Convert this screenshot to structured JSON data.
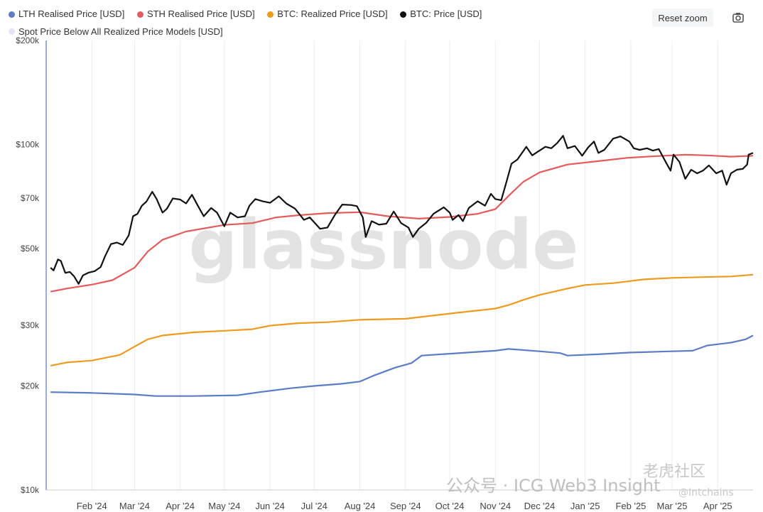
{
  "legend": {
    "items": [
      {
        "label": "LTH Realised Price [USD]",
        "color": "#5b7cc7"
      },
      {
        "label": "STH Realised Price [USD]",
        "color": "#e55a5a"
      },
      {
        "label": "BTC: Realized Price [USD]",
        "color": "#ef9a1d"
      },
      {
        "label": "BTC: Price [USD]",
        "color": "#111111"
      },
      {
        "label": "Spot Price Below All Realized Price Models [USD]",
        "color": "#e4e4f2"
      }
    ]
  },
  "toolbar": {
    "reset_zoom_label": "Reset zoom",
    "camera_icon": "camera-icon"
  },
  "watermarks": {
    "logo": "glassnode",
    "channel": "公众号 · ICG Web3 Insight",
    "cn_brand": "老虎社区",
    "handle": "@Intchains"
  },
  "chart_data": {
    "type": "line",
    "y_scale": "log",
    "ylim": [
      10000,
      200000
    ],
    "y_ticks": [
      {
        "value": 10000,
        "label": "$10k"
      },
      {
        "value": 20000,
        "label": "$20k"
      },
      {
        "value": 30000,
        "label": "$30k"
      },
      {
        "value": 50000,
        "label": "$50k"
      },
      {
        "value": 70000,
        "label": "$70k"
      },
      {
        "value": 100000,
        "label": "$100k"
      },
      {
        "value": 200000,
        "label": "$200k"
      }
    ],
    "xlim": [
      "2024-01-01",
      "2025-04-25"
    ],
    "x_ticks": [
      {
        "date": "2024-02-01",
        "label": "Feb '24"
      },
      {
        "date": "2024-03-01",
        "label": "Mar '24"
      },
      {
        "date": "2024-04-01",
        "label": "Apr '24"
      },
      {
        "date": "2024-05-01",
        "label": "May '24"
      },
      {
        "date": "2024-06-01",
        "label": "Jun '24"
      },
      {
        "date": "2024-07-01",
        "label": "Jul '24"
      },
      {
        "date": "2024-08-01",
        "label": "Aug '24"
      },
      {
        "date": "2024-09-01",
        "label": "Sep '24"
      },
      {
        "date": "2024-10-01",
        "label": "Oct '24"
      },
      {
        "date": "2024-11-01",
        "label": "Nov '24"
      },
      {
        "date": "2024-12-01",
        "label": "Dec '24"
      },
      {
        "date": "2025-01-01",
        "label": "Jan '25"
      },
      {
        "date": "2025-02-01",
        "label": "Feb '25"
      },
      {
        "date": "2025-03-01",
        "label": "Mar '25"
      },
      {
        "date": "2025-04-01",
        "label": "Apr '25"
      }
    ],
    "grid": {
      "vertical": true,
      "horizontal": false
    },
    "legend_position": "top-left",
    "series": [
      {
        "name": "LTH Realised Price [USD]",
        "color": "#5b7cc7",
        "points": [
          [
            "2024-01-04",
            19200
          ],
          [
            "2024-02-01",
            19100
          ],
          [
            "2024-03-01",
            18900
          ],
          [
            "2024-03-15",
            18700
          ],
          [
            "2024-04-10",
            18700
          ],
          [
            "2024-05-10",
            18800
          ],
          [
            "2024-05-25",
            19200
          ],
          [
            "2024-06-15",
            19700
          ],
          [
            "2024-07-01",
            20000
          ],
          [
            "2024-07-20",
            20300
          ],
          [
            "2024-08-01",
            20600
          ],
          [
            "2024-08-10",
            21400
          ],
          [
            "2024-08-25",
            22600
          ],
          [
            "2024-09-05",
            23300
          ],
          [
            "2024-09-12",
            24500
          ],
          [
            "2024-10-01",
            24800
          ],
          [
            "2024-11-01",
            25300
          ],
          [
            "2024-11-10",
            25600
          ],
          [
            "2024-12-01",
            25200
          ],
          [
            "2024-12-15",
            24900
          ],
          [
            "2024-12-20",
            24500
          ],
          [
            "2025-01-10",
            24700
          ],
          [
            "2025-02-01",
            25000
          ],
          [
            "2025-03-01",
            25200
          ],
          [
            "2025-03-15",
            25300
          ],
          [
            "2025-03-25",
            26200
          ],
          [
            "2025-04-10",
            26700
          ],
          [
            "2025-04-20",
            27300
          ],
          [
            "2025-04-25",
            28000
          ]
        ]
      },
      {
        "name": "BTC: Realized Price [USD]",
        "color": "#ef9a1d",
        "points": [
          [
            "2024-01-04",
            22900
          ],
          [
            "2024-01-15",
            23400
          ],
          [
            "2024-02-01",
            23700
          ],
          [
            "2024-02-20",
            24600
          ],
          [
            "2024-03-01",
            26000
          ],
          [
            "2024-03-10",
            27300
          ],
          [
            "2024-03-20",
            28000
          ],
          [
            "2024-04-10",
            28600
          ],
          [
            "2024-05-01",
            28900
          ],
          [
            "2024-05-20",
            29200
          ],
          [
            "2024-06-01",
            29900
          ],
          [
            "2024-06-20",
            30400
          ],
          [
            "2024-07-10",
            30600
          ],
          [
            "2024-08-01",
            31100
          ],
          [
            "2024-09-01",
            31300
          ],
          [
            "2024-10-01",
            32400
          ],
          [
            "2024-11-01",
            33500
          ],
          [
            "2024-11-10",
            34300
          ],
          [
            "2024-11-20",
            35500
          ],
          [
            "2024-12-01",
            36700
          ],
          [
            "2024-12-20",
            38300
          ],
          [
            "2025-01-01",
            39200
          ],
          [
            "2025-01-20",
            39700
          ],
          [
            "2025-02-10",
            40700
          ],
          [
            "2025-03-01",
            41100
          ],
          [
            "2025-03-20",
            41300
          ],
          [
            "2025-04-10",
            41500
          ],
          [
            "2025-04-25",
            42000
          ]
        ]
      },
      {
        "name": "STH Realised Price [USD]",
        "color": "#e55a5a",
        "points": [
          [
            "2024-01-04",
            37500
          ],
          [
            "2024-01-15",
            38300
          ],
          [
            "2024-02-01",
            39300
          ],
          [
            "2024-02-15",
            40500
          ],
          [
            "2024-03-01",
            44000
          ],
          [
            "2024-03-10",
            49000
          ],
          [
            "2024-03-20",
            53000
          ],
          [
            "2024-04-05",
            56000
          ],
          [
            "2024-05-01",
            58500
          ],
          [
            "2024-05-20",
            59200
          ],
          [
            "2024-06-05",
            61500
          ],
          [
            "2024-06-20",
            62400
          ],
          [
            "2024-07-10",
            63300
          ],
          [
            "2024-08-01",
            63700
          ],
          [
            "2024-08-20",
            62000
          ],
          [
            "2024-09-10",
            61000
          ],
          [
            "2024-10-01",
            61700
          ],
          [
            "2024-10-20",
            63000
          ],
          [
            "2024-11-01",
            65000
          ],
          [
            "2024-11-10",
            71000
          ],
          [
            "2024-11-20",
            78000
          ],
          [
            "2024-12-01",
            83000
          ],
          [
            "2024-12-20",
            87500
          ],
          [
            "2025-01-10",
            89500
          ],
          [
            "2025-01-30",
            91500
          ],
          [
            "2025-02-20",
            92600
          ],
          [
            "2025-03-10",
            93400
          ],
          [
            "2025-03-25",
            93000
          ],
          [
            "2025-04-10",
            92200
          ],
          [
            "2025-04-25",
            92800
          ]
        ]
      },
      {
        "name": "BTC: Price [USD]",
        "color": "#111111",
        "points": [
          [
            "2024-01-04",
            44000
          ],
          [
            "2024-01-06",
            43200
          ],
          [
            "2024-01-09",
            46500
          ],
          [
            "2024-01-11",
            46000
          ],
          [
            "2024-01-14",
            42500
          ],
          [
            "2024-01-17",
            42800
          ],
          [
            "2024-01-20",
            41500
          ],
          [
            "2024-01-23",
            39500
          ],
          [
            "2024-01-26",
            41800
          ],
          [
            "2024-01-30",
            42600
          ],
          [
            "2024-02-03",
            43000
          ],
          [
            "2024-02-07",
            44200
          ],
          [
            "2024-02-10",
            47500
          ],
          [
            "2024-02-14",
            51500
          ],
          [
            "2024-02-18",
            52000
          ],
          [
            "2024-02-22",
            51200
          ],
          [
            "2024-02-26",
            54500
          ],
          [
            "2024-02-29",
            62000
          ],
          [
            "2024-03-03",
            63000
          ],
          [
            "2024-03-06",
            66500
          ],
          [
            "2024-03-09",
            68300
          ],
          [
            "2024-03-13",
            73000
          ],
          [
            "2024-03-16",
            69500
          ],
          [
            "2024-03-20",
            63500
          ],
          [
            "2024-03-23",
            65200
          ],
          [
            "2024-03-27",
            69800
          ],
          [
            "2024-04-01",
            69300
          ],
          [
            "2024-04-05",
            67500
          ],
          [
            "2024-04-09",
            71500
          ],
          [
            "2024-04-13",
            66500
          ],
          [
            "2024-04-17",
            62000
          ],
          [
            "2024-04-22",
            65500
          ],
          [
            "2024-04-26",
            63500
          ],
          [
            "2024-05-01",
            58000
          ],
          [
            "2024-05-05",
            63500
          ],
          [
            "2024-05-10",
            61500
          ],
          [
            "2024-05-15",
            62000
          ],
          [
            "2024-05-18",
            66500
          ],
          [
            "2024-05-22",
            69500
          ],
          [
            "2024-05-27",
            68500
          ],
          [
            "2024-06-01",
            67800
          ],
          [
            "2024-06-07",
            70800
          ],
          [
            "2024-06-12",
            67500
          ],
          [
            "2024-06-18",
            65200
          ],
          [
            "2024-06-24",
            60500
          ],
          [
            "2024-06-28",
            61500
          ],
          [
            "2024-07-05",
            57000
          ],
          [
            "2024-07-10",
            57500
          ],
          [
            "2024-07-15",
            62500
          ],
          [
            "2024-07-20",
            67000
          ],
          [
            "2024-07-26",
            66800
          ],
          [
            "2024-07-30",
            66300
          ],
          [
            "2024-08-03",
            61500
          ],
          [
            "2024-08-05",
            54000
          ],
          [
            "2024-08-09",
            60000
          ],
          [
            "2024-08-14",
            58600
          ],
          [
            "2024-08-19",
            59000
          ],
          [
            "2024-08-24",
            64000
          ],
          [
            "2024-08-29",
            59200
          ],
          [
            "2024-09-03",
            57500
          ],
          [
            "2024-09-06",
            54000
          ],
          [
            "2024-09-10",
            57000
          ],
          [
            "2024-09-15",
            59300
          ],
          [
            "2024-09-20",
            63000
          ],
          [
            "2024-09-27",
            65800
          ],
          [
            "2024-10-01",
            63500
          ],
          [
            "2024-10-03",
            60500
          ],
          [
            "2024-10-07",
            62500
          ],
          [
            "2024-10-10",
            60000
          ],
          [
            "2024-10-14",
            65500
          ],
          [
            "2024-10-20",
            68500
          ],
          [
            "2024-10-25",
            66500
          ],
          [
            "2024-10-29",
            72000
          ],
          [
            "2024-11-01",
            69500
          ],
          [
            "2024-11-05",
            69000
          ],
          [
            "2024-11-08",
            76500
          ],
          [
            "2024-11-12",
            88000
          ],
          [
            "2024-11-16",
            90500
          ],
          [
            "2024-11-22",
            98500
          ],
          [
            "2024-11-26",
            93000
          ],
          [
            "2024-12-01",
            96000
          ],
          [
            "2024-12-05",
            98500
          ],
          [
            "2024-12-09",
            97500
          ],
          [
            "2024-12-13",
            101000
          ],
          [
            "2024-12-17",
            106000
          ],
          [
            "2024-12-20",
            97500
          ],
          [
            "2024-12-25",
            99000
          ],
          [
            "2024-12-30",
            92800
          ],
          [
            "2025-01-03",
            98000
          ],
          [
            "2025-01-07",
            102000
          ],
          [
            "2025-01-10",
            94500
          ],
          [
            "2025-01-14",
            96500
          ],
          [
            "2025-01-20",
            104000
          ],
          [
            "2025-01-25",
            105500
          ],
          [
            "2025-01-31",
            102000
          ],
          [
            "2025-02-03",
            97500
          ],
          [
            "2025-02-07",
            96500
          ],
          [
            "2025-02-12",
            97500
          ],
          [
            "2025-02-16",
            96000
          ],
          [
            "2025-02-20",
            97000
          ],
          [
            "2025-02-25",
            88500
          ],
          [
            "2025-02-28",
            84000
          ],
          [
            "2025-03-02",
            93500
          ],
          [
            "2025-03-06",
            89000
          ],
          [
            "2025-03-10",
            79500
          ],
          [
            "2025-03-14",
            84500
          ],
          [
            "2025-03-18",
            82500
          ],
          [
            "2025-03-22",
            84000
          ],
          [
            "2025-03-26",
            87000
          ],
          [
            "2025-03-31",
            82500
          ],
          [
            "2025-04-04",
            84000
          ],
          [
            "2025-04-07",
            76500
          ],
          [
            "2025-04-10",
            82500
          ],
          [
            "2025-04-14",
            84500
          ],
          [
            "2025-04-18",
            85000
          ],
          [
            "2025-04-21",
            87500
          ],
          [
            "2025-04-22",
            93500
          ],
          [
            "2025-04-25",
            94500
          ]
        ]
      }
    ]
  }
}
